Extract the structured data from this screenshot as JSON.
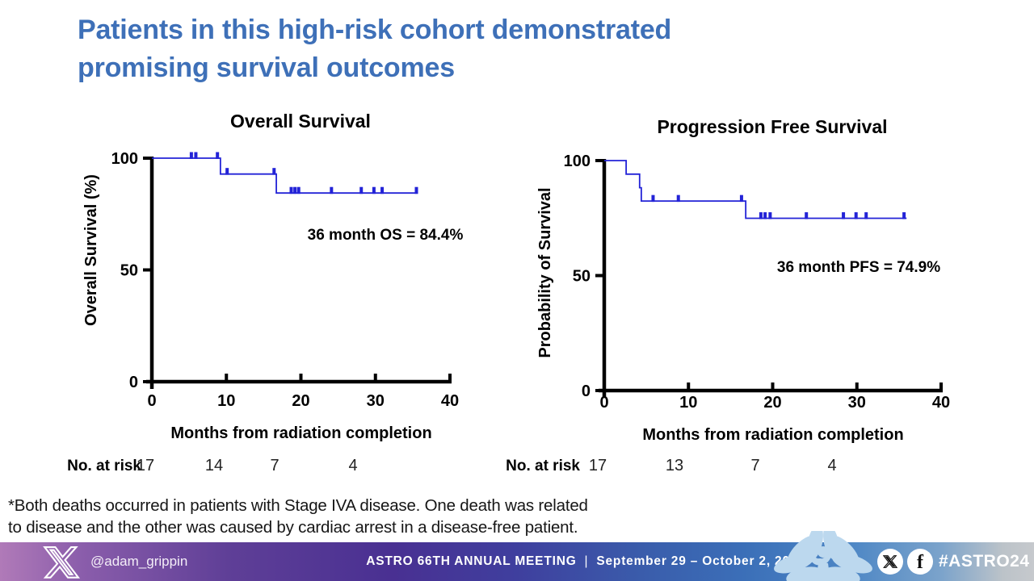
{
  "slide_title": {
    "line1": "Patients in this high-risk cohort demonstrated",
    "line2": "promising survival outcomes"
  },
  "colors": {
    "title_blue": "#3E70B8",
    "curve_blue": "#2323D7",
    "axis_black": "#000000",
    "footer_purple": "#493092",
    "footer_blue": "#3b6fb8",
    "flower_light_blue": "#bcd8ee"
  },
  "chart_data": [
    {
      "type": "line",
      "subtype": "kaplan-meier-step",
      "name": "overall-survival",
      "title": "Overall Survival",
      "ylabel": "Overall Survival (%)",
      "xlabel": "Months from radiation completion",
      "annotation": "36 month OS = 84.4%",
      "xlim": [
        0,
        40
      ],
      "ylim": [
        0,
        100
      ],
      "xticks": [
        0,
        10,
        20,
        30,
        40
      ],
      "yticks": [
        0,
        50,
        100
      ],
      "grid": false,
      "legend": "none",
      "steps": [
        [
          0,
          100
        ],
        [
          9.2,
          100
        ],
        [
          9.2,
          92.9
        ],
        [
          16.7,
          92.9
        ],
        [
          16.7,
          84.4
        ],
        [
          35.7,
          84.4
        ]
      ],
      "censor_marks": [
        [
          5.3,
          100
        ],
        [
          5.9,
          100
        ],
        [
          8.8,
          100
        ],
        [
          10.1,
          92.9
        ],
        [
          16.4,
          92.9
        ],
        [
          18.7,
          84.4
        ],
        [
          19.2,
          84.4
        ],
        [
          19.7,
          84.4
        ],
        [
          24.1,
          84.4
        ],
        [
          28.1,
          84.4
        ],
        [
          29.8,
          84.4
        ],
        [
          30.9,
          84.4
        ],
        [
          35.5,
          84.4
        ]
      ],
      "at_risk": {
        "label": "No. at risk",
        "times": [
          0,
          10,
          20,
          30
        ],
        "values": [
          17,
          14,
          7,
          4
        ]
      }
    },
    {
      "type": "line",
      "subtype": "kaplan-meier-step",
      "name": "progression-free-survival",
      "title": "Progression Free Survival",
      "ylabel": "Probability of Survival",
      "xlabel": "Months from radiation completion",
      "annotation": "36 month PFS = 74.9%",
      "xlim": [
        0,
        40
      ],
      "ylim": [
        0,
        100
      ],
      "xticks": [
        0,
        10,
        20,
        30,
        40
      ],
      "yticks": [
        0,
        50,
        100
      ],
      "grid": false,
      "legend": "none",
      "steps": [
        [
          0,
          100
        ],
        [
          2.6,
          100
        ],
        [
          2.6,
          94.1
        ],
        [
          4.2,
          94.1
        ],
        [
          4.2,
          88.2
        ],
        [
          4.4,
          88.2
        ],
        [
          4.4,
          82.4
        ],
        [
          16.8,
          82.4
        ],
        [
          16.8,
          74.9
        ],
        [
          35.9,
          74.9
        ]
      ],
      "censor_marks": [
        [
          5.8,
          82.4
        ],
        [
          8.8,
          82.4
        ],
        [
          16.3,
          82.4
        ],
        [
          18.6,
          74.9
        ],
        [
          19.1,
          74.9
        ],
        [
          19.7,
          74.9
        ],
        [
          24.0,
          74.9
        ],
        [
          28.4,
          74.9
        ],
        [
          29.9,
          74.9
        ],
        [
          31.1,
          74.9
        ],
        [
          35.6,
          74.9
        ]
      ],
      "at_risk": {
        "label": "No. at risk",
        "times": [
          0,
          10,
          20,
          30
        ],
        "values": [
          17,
          13,
          7,
          4
        ]
      }
    }
  ],
  "footnote": {
    "line1": "*Both deaths occurred in patients with Stage IVA disease. One death was related",
    "line2": "to disease and the other was caused by cardiac arrest in a disease-free patient."
  },
  "footer": {
    "handle": "@adam_grippin",
    "meeting": "ASTRO 66TH ANNUAL MEETING",
    "separator": "|",
    "dates": "September 29 – October 2, 2024",
    "hashtag": "#ASTRO24",
    "facebook_glyph": "f",
    "icons": [
      "x-logo",
      "facebook-logo",
      "astro-flower-logo"
    ]
  }
}
